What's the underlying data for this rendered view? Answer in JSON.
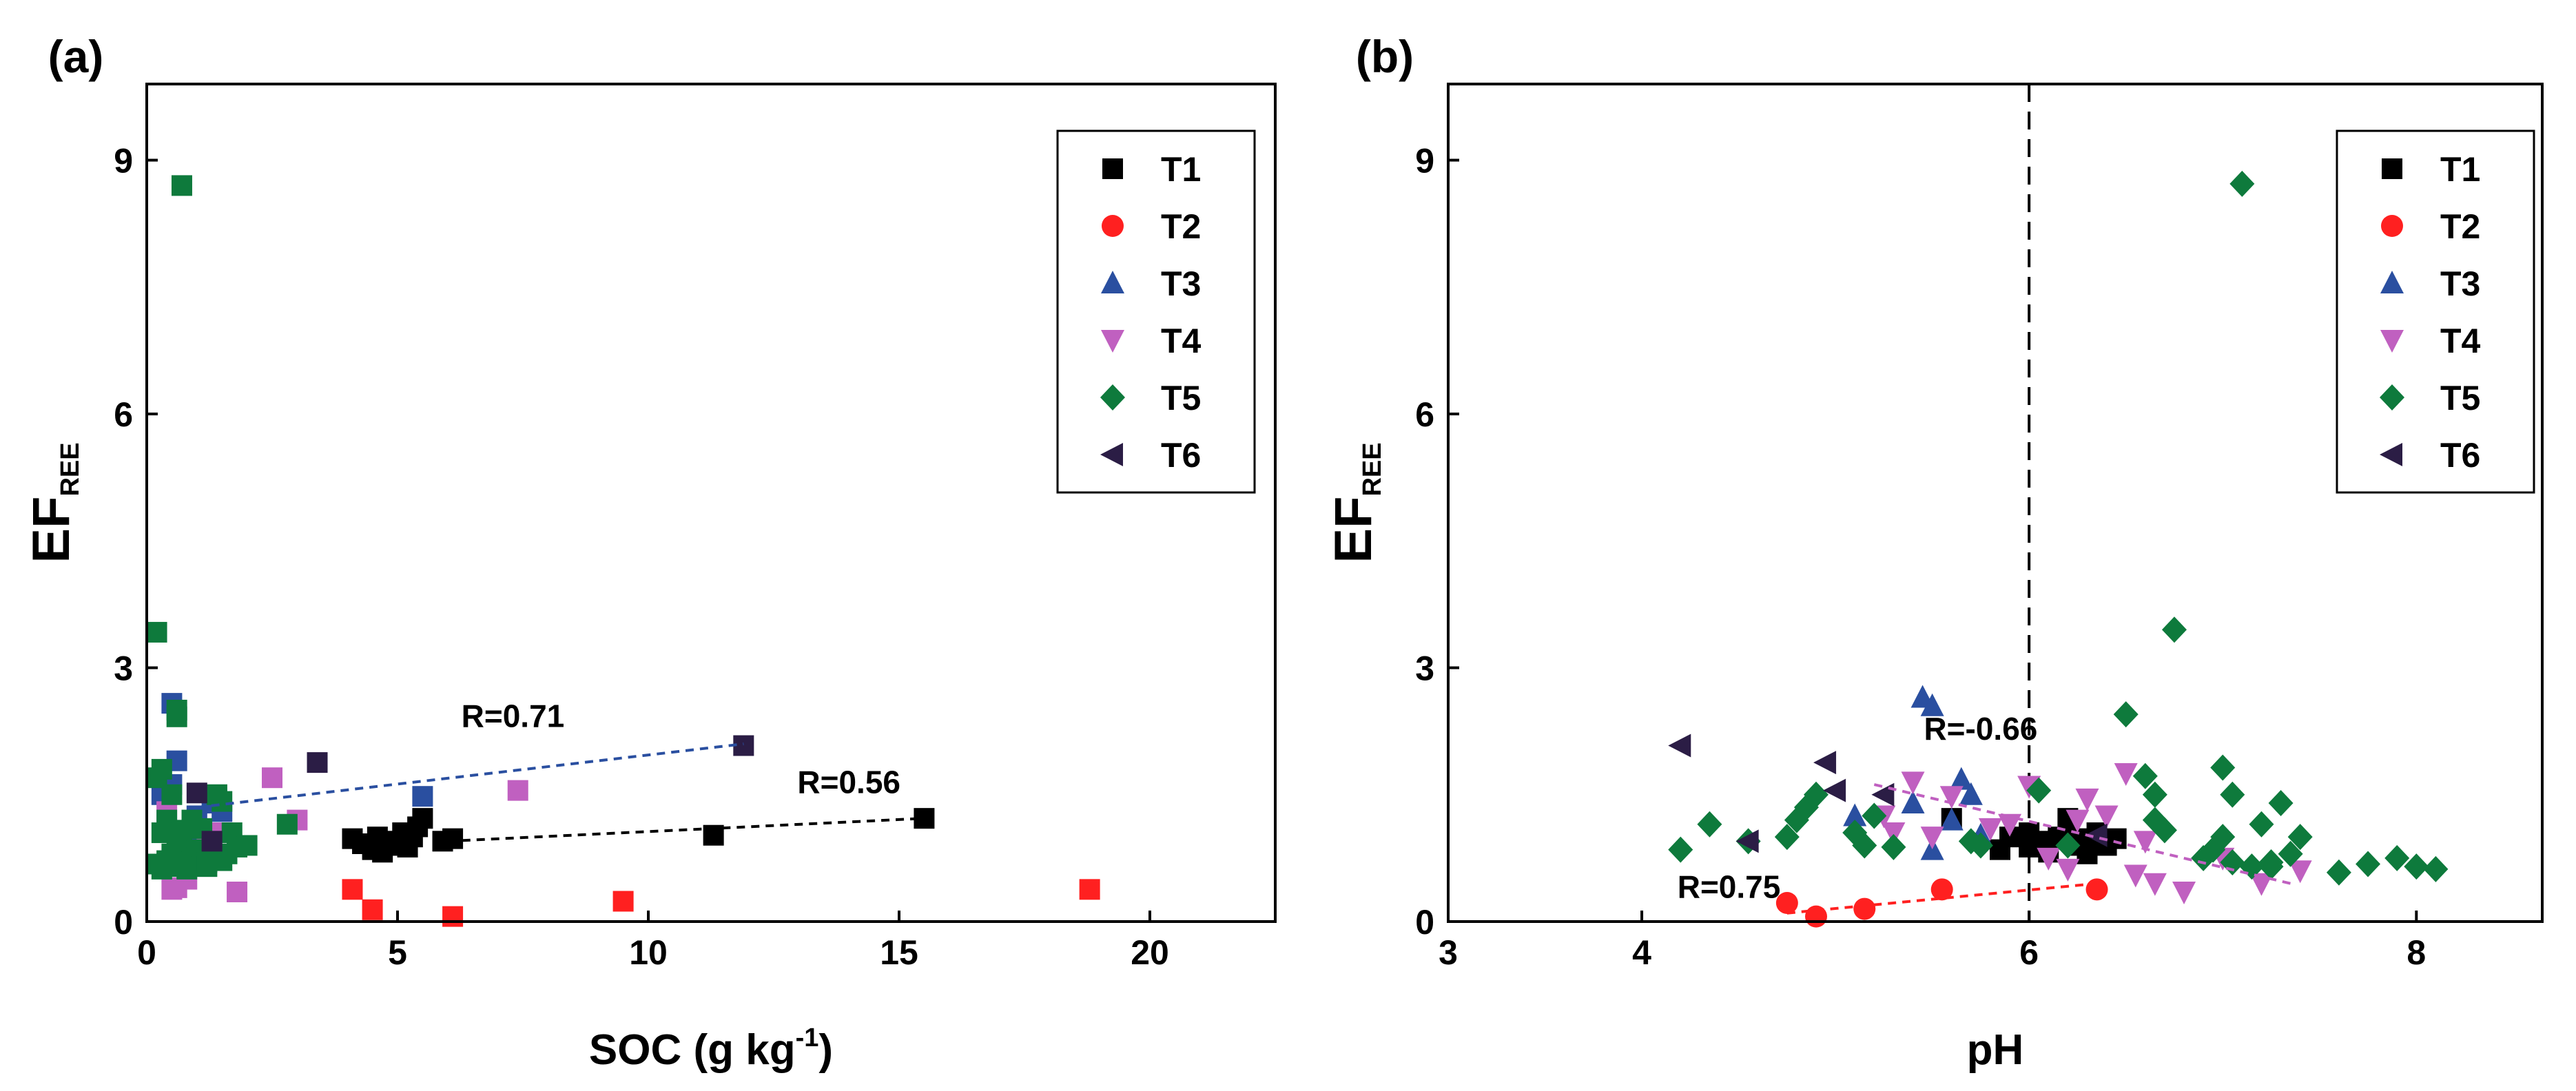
{
  "chart_data": [
    {
      "panel_label": "(a)",
      "type": "scatter",
      "xlabel": "SOC (g kg",
      "xlabel_sup": "-1",
      "xlabel_close": ")",
      "ylabel": "EF",
      "ylabel_sub": "REE",
      "xlim": [
        0,
        22.5
      ],
      "ylim": [
        0,
        9.9
      ],
      "xticks": [
        0,
        5,
        10,
        15,
        20
      ],
      "xtick_labels": [
        "0",
        "5",
        "10",
        "15",
        "20"
      ],
      "yticks": [
        0,
        3,
        6,
        9
      ],
      "ytick_labels": [
        "0",
        "3",
        "6",
        "9"
      ],
      "legend_position": "top-right",
      "marker_override": "square",
      "series": [
        {
          "name": "T1",
          "color": "#000000",
          "marker": "square",
          "points": [
            [
              4.1,
              0.98
            ],
            [
              4.3,
              0.92
            ],
            [
              4.5,
              0.85
            ],
            [
              4.6,
              1.0
            ],
            [
              4.7,
              0.82
            ],
            [
              4.8,
              0.9
            ],
            [
              5.0,
              0.95
            ],
            [
              5.1,
              1.05
            ],
            [
              5.2,
              0.88
            ],
            [
              5.3,
              1.0
            ],
            [
              5.4,
              1.12
            ],
            [
              5.5,
              1.22
            ],
            [
              5.9,
              0.95
            ],
            [
              6.1,
              0.98
            ],
            [
              11.3,
              1.02
            ],
            [
              15.5,
              1.22
            ]
          ]
        },
        {
          "name": "T2",
          "color": "#ff2020",
          "marker": "circle",
          "points": [
            [
              4.1,
              0.38
            ],
            [
              4.5,
              0.14
            ],
            [
              6.1,
              0.06
            ],
            [
              9.5,
              0.24
            ],
            [
              18.8,
              0.38
            ]
          ]
        },
        {
          "name": "T3",
          "color": "#2a4fa0",
          "marker": "triangle-up",
          "points": [
            [
              0.3,
              1.5
            ],
            [
              0.5,
              1.62
            ],
            [
              0.5,
              2.58
            ],
            [
              0.6,
              1.9
            ],
            [
              0.8,
              1.05
            ],
            [
              1.0,
              1.25
            ],
            [
              1.3,
              1.4
            ],
            [
              1.5,
              1.3
            ],
            [
              5.5,
              1.48
            ]
          ]
        },
        {
          "name": "T4",
          "color": "#c060c0",
          "marker": "triangle-down",
          "points": [
            [
              0.4,
              1.3
            ],
            [
              0.5,
              0.38
            ],
            [
              0.6,
              0.4
            ],
            [
              0.8,
              0.5
            ],
            [
              1.0,
              0.82
            ],
            [
              1.2,
              0.9
            ],
            [
              1.5,
              1.05
            ],
            [
              1.8,
              0.35
            ],
            [
              2.5,
              1.7
            ],
            [
              3.0,
              1.2
            ],
            [
              7.4,
              1.55
            ]
          ]
        },
        {
          "name": "T5",
          "color": "#0e7a3c",
          "marker": "diamond",
          "points": [
            [
              0.2,
              3.42
            ],
            [
              0.6,
              2.42
            ],
            [
              0.6,
              2.5
            ],
            [
              0.7,
              8.7
            ],
            [
              0.2,
              1.7
            ],
            [
              0.3,
              1.8
            ],
            [
              0.4,
              1.2
            ],
            [
              0.5,
              1.5
            ],
            [
              0.3,
              0.62
            ],
            [
              0.4,
              0.72
            ],
            [
              0.5,
              0.8
            ],
            [
              0.6,
              0.95
            ],
            [
              0.7,
              1.08
            ],
            [
              0.8,
              0.62
            ],
            [
              0.9,
              0.75
            ],
            [
              1.0,
              0.85
            ],
            [
              1.1,
              1.1
            ],
            [
              1.2,
              0.7
            ],
            [
              1.3,
              0.9
            ],
            [
              1.4,
              1.5
            ],
            [
              1.5,
              1.42
            ],
            [
              1.6,
              0.8
            ],
            [
              1.7,
              1.05
            ],
            [
              1.8,
              0.88
            ],
            [
              2.0,
              0.9
            ],
            [
              0.2,
              0.68
            ],
            [
              0.3,
              1.05
            ],
            [
              0.9,
              1.2
            ],
            [
              1.2,
              0.65
            ],
            [
              2.8,
              1.15
            ],
            [
              1.5,
              0.72
            ],
            [
              0.7,
              0.65
            ]
          ]
        },
        {
          "name": "T6",
          "color": "#2b1d45",
          "marker": "triangle-left",
          "points": [
            [
              1.0,
              1.52
            ],
            [
              1.3,
              0.95
            ],
            [
              3.4,
              1.88
            ],
            [
              11.9,
              2.08
            ]
          ]
        }
      ],
      "fit_lines": [
        {
          "color": "#2a4fa0",
          "from": [
            1.0,
            1.35
          ],
          "to": [
            11.9,
            2.1
          ],
          "label": "R=0.71",
          "label_at": [
            7.3,
            2.3
          ]
        },
        {
          "color": "#000000",
          "from": [
            6.0,
            0.95
          ],
          "to": [
            15.5,
            1.22
          ],
          "label": "R=0.56",
          "label_at": [
            14.0,
            1.52
          ]
        }
      ]
    },
    {
      "panel_label": "(b)",
      "type": "scatter",
      "xlabel": "pH",
      "ylabel": "EF",
      "ylabel_sub": "REE",
      "xlim": [
        3,
        8.65
      ],
      "ylim": [
        0,
        9.9
      ],
      "xticks": [
        3,
        4,
        6,
        8
      ],
      "xtick_labels": [
        "3",
        "4",
        "6",
        "8"
      ],
      "yticks": [
        0,
        3,
        6,
        9
      ],
      "ytick_labels": [
        "0",
        "3",
        "6",
        "9"
      ],
      "vline": 6,
      "legend_position": "top-right",
      "series": [
        {
          "name": "T1",
          "color": "#000000",
          "marker": "square",
          "points": [
            [
              5.6,
              1.22
            ],
            [
              5.85,
              0.85
            ],
            [
              5.9,
              1.0
            ],
            [
              6.0,
              1.05
            ],
            [
              6.05,
              0.95
            ],
            [
              6.1,
              0.82
            ],
            [
              6.15,
              1.0
            ],
            [
              6.2,
              1.22
            ],
            [
              6.25,
              0.9
            ],
            [
              6.3,
              0.8
            ],
            [
              6.35,
              1.05
            ],
            [
              6.4,
              0.9
            ],
            [
              6.45,
              0.98
            ],
            [
              6.0,
              0.88
            ],
            [
              6.2,
              0.98
            ],
            [
              6.3,
              0.98
            ]
          ]
        },
        {
          "name": "T2",
          "color": "#ff2020",
          "marker": "circle",
          "points": [
            [
              4.75,
              0.22
            ],
            [
              4.9,
              0.06
            ],
            [
              5.15,
              0.15
            ],
            [
              5.55,
              0.38
            ],
            [
              6.35,
              0.38
            ]
          ]
        },
        {
          "name": "T3",
          "color": "#2a4fa0",
          "marker": "triangle-up",
          "points": [
            [
              5.1,
              1.25
            ],
            [
              5.4,
              1.4
            ],
            [
              5.45,
              2.65
            ],
            [
              5.5,
              2.55
            ],
            [
              5.5,
              0.85
            ],
            [
              5.6,
              1.2
            ],
            [
              5.65,
              1.68
            ],
            [
              5.7,
              1.5
            ],
            [
              5.75,
              1.02
            ]
          ]
        },
        {
          "name": "T4",
          "color": "#c060c0",
          "marker": "triangle-down",
          "points": [
            [
              5.25,
              1.25
            ],
            [
              5.3,
              1.05
            ],
            [
              5.4,
              1.65
            ],
            [
              5.6,
              1.48
            ],
            [
              5.8,
              1.1
            ],
            [
              5.9,
              1.15
            ],
            [
              6.0,
              1.6
            ],
            [
              6.1,
              0.75
            ],
            [
              6.2,
              0.62
            ],
            [
              6.25,
              1.2
            ],
            [
              6.3,
              1.45
            ],
            [
              6.4,
              1.25
            ],
            [
              6.5,
              1.75
            ],
            [
              6.55,
              0.55
            ],
            [
              6.6,
              0.95
            ],
            [
              6.65,
              0.45
            ],
            [
              6.8,
              0.35
            ],
            [
              7.0,
              0.75
            ],
            [
              7.2,
              0.45
            ],
            [
              7.4,
              0.6
            ],
            [
              5.5,
              1.0
            ]
          ]
        },
        {
          "name": "T5",
          "color": "#0e7a3c",
          "marker": "diamond",
          "points": [
            [
              4.2,
              0.85
            ],
            [
              4.35,
              1.15
            ],
            [
              4.55,
              0.95
            ],
            [
              4.75,
              1.0
            ],
            [
              4.8,
              1.2
            ],
            [
              4.85,
              1.35
            ],
            [
              4.9,
              1.5
            ],
            [
              5.1,
              1.05
            ],
            [
              5.15,
              0.9
            ],
            [
              5.2,
              1.25
            ],
            [
              5.3,
              0.88
            ],
            [
              5.7,
              0.95
            ],
            [
              5.75,
              0.9
            ],
            [
              6.05,
              1.55
            ],
            [
              6.2,
              0.9
            ],
            [
              6.5,
              2.45
            ],
            [
              6.6,
              1.72
            ],
            [
              6.65,
              1.5
            ],
            [
              6.65,
              1.2
            ],
            [
              6.7,
              1.08
            ],
            [
              6.75,
              3.45
            ],
            [
              6.95,
              0.85
            ],
            [
              7.0,
              1.0
            ],
            [
              7.0,
              1.82
            ],
            [
              7.05,
              1.5
            ],
            [
              7.05,
              0.7
            ],
            [
              7.1,
              8.72
            ],
            [
              7.15,
              0.65
            ],
            [
              7.2,
              1.15
            ],
            [
              7.25,
              0.7
            ],
            [
              7.3,
              1.4
            ],
            [
              7.35,
              0.8
            ],
            [
              7.4,
              1.0
            ],
            [
              7.6,
              0.58
            ],
            [
              7.75,
              0.68
            ],
            [
              7.9,
              0.75
            ],
            [
              8.0,
              0.65
            ],
            [
              8.1,
              0.62
            ],
            [
              6.9,
              0.75
            ],
            [
              7.25,
              0.65
            ]
          ]
        },
        {
          "name": "T6",
          "color": "#2b1d45",
          "marker": "triangle-left",
          "points": [
            [
              4.2,
              2.08
            ],
            [
              4.55,
              0.95
            ],
            [
              4.95,
              1.88
            ],
            [
              5.0,
              1.55
            ],
            [
              5.25,
              1.5
            ],
            [
              6.35,
              1.02
            ]
          ]
        }
      ],
      "fit_lines": [
        {
          "color": "#c060c0",
          "from": [
            5.2,
            1.62
          ],
          "to": [
            7.35,
            0.45
          ],
          "label": "R=-0.66",
          "label_at": [
            5.75,
            2.15
          ]
        },
        {
          "color": "#ff2020",
          "from": [
            4.75,
            0.1
          ],
          "to": [
            6.35,
            0.45
          ],
          "label": "R=0.75",
          "label_at": [
            4.45,
            0.28
          ]
        }
      ]
    }
  ]
}
